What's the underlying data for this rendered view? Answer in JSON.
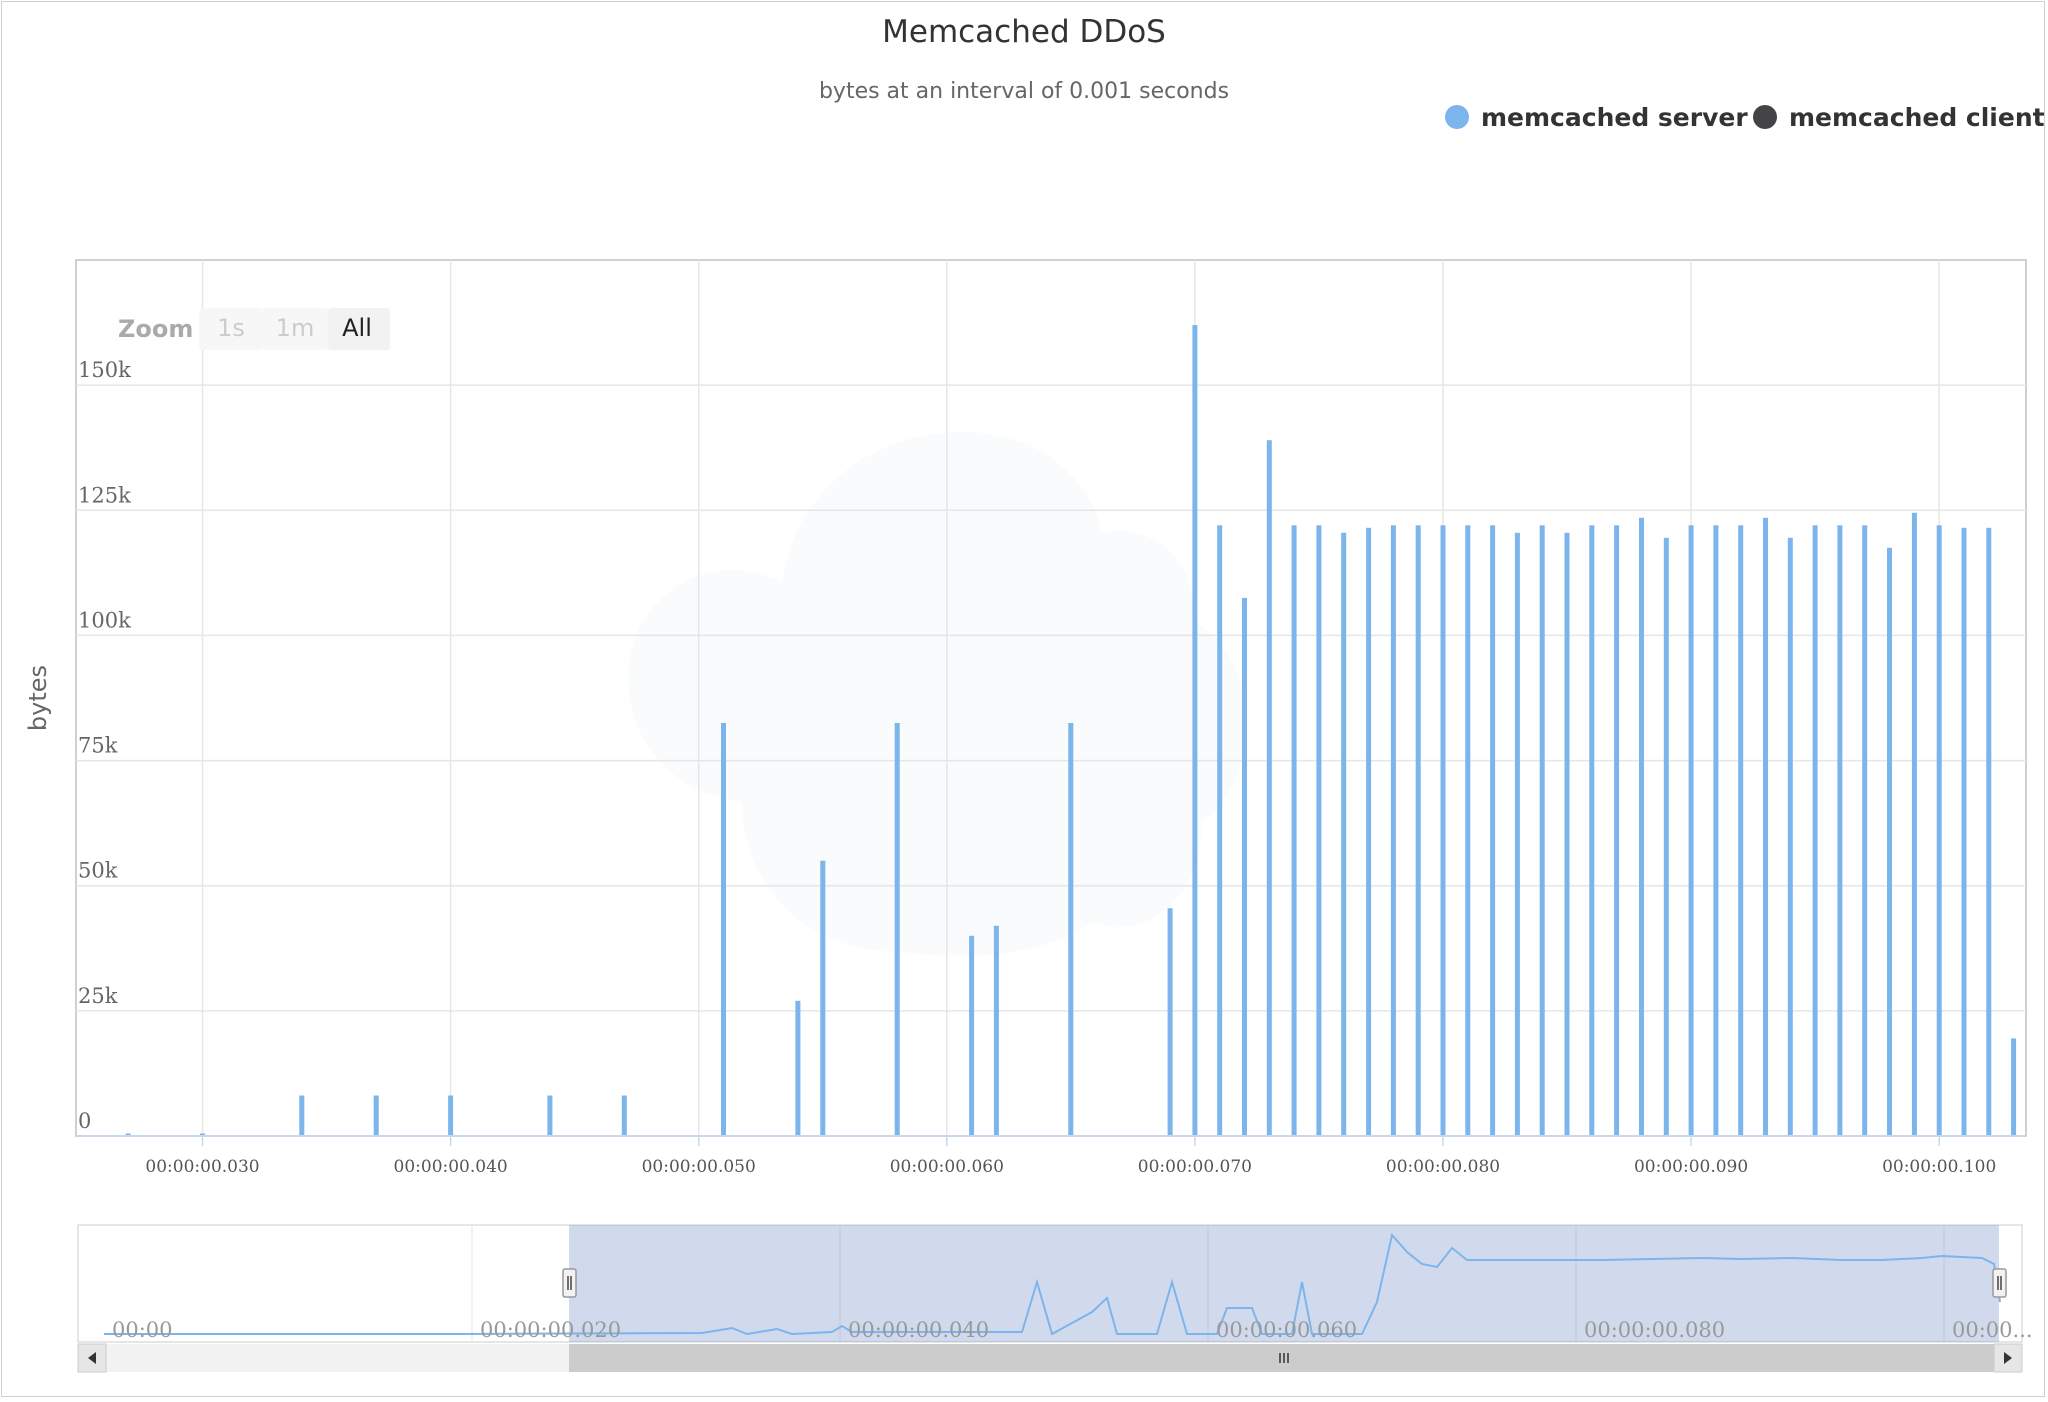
{
  "title": "Memcached DDoS",
  "subtitle": "bytes at an interval of 0.001 seconds",
  "legend": [
    {
      "label": "memcached server",
      "color": "#7cb5ec"
    },
    {
      "label": "memcached client",
      "color": "#434348"
    }
  ],
  "zoom": {
    "label": "Zoom",
    "buttons": [
      "1s",
      "1m",
      "All"
    ],
    "active": "All"
  },
  "navigator": {
    "labels": [
      "00:00",
      "00:00:00.020",
      "00:00:00.040",
      "00:00:00.060",
      "00:00:00.080",
      "00:00..."
    ]
  },
  "chart_data": {
    "type": "bar",
    "title": "Memcached DDoS",
    "subtitle": "bytes at an interval of 0.001 seconds",
    "xlabel": "",
    "ylabel": "bytes",
    "xlim": [
      0.0249,
      0.1035
    ],
    "ylim": [
      0,
      175000
    ],
    "x_ticks": [
      {
        "value": 0.03,
        "label": "00:00:00.030"
      },
      {
        "value": 0.04,
        "label": "00:00:00.040"
      },
      {
        "value": 0.05,
        "label": "00:00:00.050"
      },
      {
        "value": 0.06,
        "label": "00:00:00.060"
      },
      {
        "value": 0.07,
        "label": "00:00:00.070"
      },
      {
        "value": 0.08,
        "label": "00:00:00.080"
      },
      {
        "value": 0.09,
        "label": "00:00:00.090"
      },
      {
        "value": 0.1,
        "label": "00:00:00.100"
      }
    ],
    "y_ticks": [
      {
        "value": 0,
        "label": "0"
      },
      {
        "value": 25000,
        "label": "25k"
      },
      {
        "value": 50000,
        "label": "50k"
      },
      {
        "value": 75000,
        "label": "75k"
      },
      {
        "value": 100000,
        "label": "100k"
      },
      {
        "value": 125000,
        "label": "125k"
      },
      {
        "value": 150000,
        "label": "150k"
      }
    ],
    "grid": true,
    "legend_position": "top-right",
    "series": [
      {
        "name": "memcached server",
        "color": "#7cb5ec",
        "x": [
          0.027,
          0.03,
          0.034,
          0.037,
          0.04,
          0.044,
          0.047,
          0.051,
          0.054,
          0.055,
          0.058,
          0.061,
          0.062,
          0.065,
          0.069,
          0.07,
          0.071,
          0.072,
          0.073,
          0.074,
          0.075,
          0.076,
          0.077,
          0.078,
          0.079,
          0.08,
          0.081,
          0.082,
          0.083,
          0.084,
          0.085,
          0.086,
          0.087,
          0.088,
          0.089,
          0.09,
          0.091,
          0.092,
          0.093,
          0.094,
          0.095,
          0.096,
          0.097,
          0.098,
          0.099,
          0.1,
          0.101,
          0.102,
          0.103
        ],
        "values": [
          500,
          500,
          8100,
          8100,
          8100,
          8100,
          8100,
          82500,
          27000,
          55000,
          82500,
          40000,
          42000,
          82500,
          45500,
          162000,
          122000,
          107500,
          139000,
          122000,
          122000,
          120500,
          121500,
          122000,
          122000,
          122000,
          122000,
          122000,
          120500,
          122000,
          120500,
          122000,
          122000,
          123500,
          119500,
          122000,
          122000,
          122000,
          123500,
          119500,
          122000,
          122000,
          122000,
          117500,
          124500,
          122000,
          121500,
          121500,
          19500
        ]
      },
      {
        "name": "memcached client",
        "color": "#434348",
        "x": [],
        "values": []
      }
    ]
  }
}
